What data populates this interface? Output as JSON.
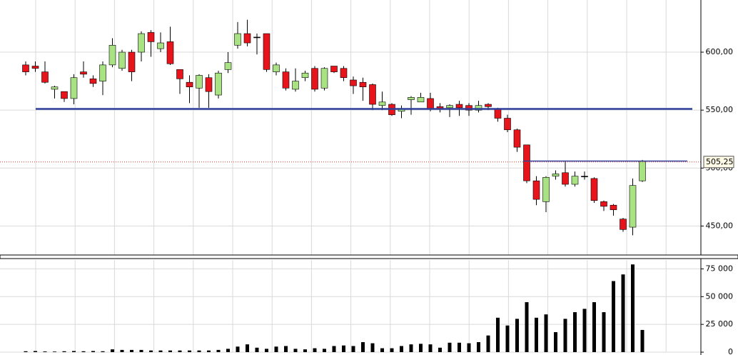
{
  "chart_data": [
    {
      "type": "candlestick",
      "open": [
        589,
        588,
        583,
        568,
        566,
        560,
        583,
        577,
        575,
        589,
        586,
        600,
        600,
        617,
        603,
        609,
        585,
        574,
        569,
        578,
        563,
        585,
        606,
        616,
        613,
        616,
        583,
        583,
        568,
        578,
        586,
        569,
        588,
        586,
        576,
        574,
        572,
        554,
        555,
        549,
        559,
        557,
        560,
        553,
        552,
        555,
        554,
        550,
        555,
        551,
        543,
        533,
        520,
        489,
        471,
        493,
        496,
        486,
        493,
        491,
        471,
        468,
        456,
        449,
        489
      ],
      "high": [
        592,
        592,
        592,
        571,
        566,
        581,
        592,
        580,
        592,
        612,
        602,
        602,
        618,
        619,
        617,
        622,
        585,
        580,
        581,
        581,
        584,
        600,
        626,
        628,
        616,
        616,
        591,
        586,
        586,
        584,
        588,
        587,
        588,
        588,
        579,
        578,
        573,
        566,
        556,
        554,
        562,
        565,
        565,
        556,
        555,
        558,
        556,
        558,
        556,
        552,
        546,
        534,
        520,
        493,
        493,
        498,
        506,
        497,
        497,
        492,
        472,
        469,
        457,
        491,
        507
      ],
      "low": [
        580,
        583,
        573,
        560,
        557,
        555,
        578,
        570,
        563,
        587,
        584,
        575,
        592,
        596,
        600,
        589,
        564,
        556,
        552,
        552,
        560,
        582,
        603,
        605,
        598,
        583,
        580,
        567,
        566,
        575,
        566,
        567,
        582,
        575,
        564,
        558,
        550,
        550,
        545,
        543,
        546,
        557,
        549,
        548,
        544,
        545,
        545,
        548,
        550,
        540,
        531,
        514,
        487,
        468,
        462,
        490,
        484,
        484,
        490,
        470,
        463,
        459,
        445,
        442,
        488
      ],
      "close": [
        583,
        586,
        574,
        570,
        560,
        578,
        581,
        573,
        589,
        606,
        600,
        583,
        616,
        609,
        608,
        590,
        577,
        570,
        580,
        566,
        582,
        591,
        616,
        608,
        613,
        585,
        589,
        569,
        575,
        582,
        568,
        586,
        583,
        578,
        571,
        570,
        555,
        557,
        546,
        551,
        561,
        561,
        551,
        551,
        554,
        552,
        550,
        554,
        553,
        543,
        533,
        518,
        489,
        473,
        492,
        495,
        486,
        493,
        493,
        472,
        467,
        464,
        447,
        485,
        506
      ],
      "up_color": "#a8e283",
      "down_color": "#e8141c",
      "doji_color": "#000000",
      "levels": [
        551,
        506
      ],
      "level_color": "#2e3f9a",
      "last_price": {
        "value": 505.25,
        "label": "505,25"
      },
      "ylim": [
        425,
        645
      ],
      "yticks": [
        {
          "value": 450,
          "label": "450,00"
        },
        {
          "value": 500,
          "label": "500,00"
        },
        {
          "value": 550,
          "label": "550,00"
        },
        {
          "value": 600,
          "label": "600,00"
        }
      ],
      "grid": true
    },
    {
      "type": "bar",
      "values": [
        800,
        1000,
        600,
        500,
        800,
        1000,
        800,
        1000,
        800,
        2500,
        2000,
        2000,
        2000,
        1500,
        1500,
        1500,
        1500,
        1500,
        1500,
        1500,
        2000,
        3000,
        5000,
        7000,
        4000,
        3000,
        5000,
        5500,
        3000,
        2500,
        3500,
        3000,
        5500,
        6000,
        5500,
        9000,
        8000,
        3500,
        3500,
        5500,
        7000,
        7500,
        7000,
        4000,
        8500,
        8500,
        8000,
        9000,
        15000,
        31000,
        24000,
        30000,
        45000,
        31000,
        34000,
        18000,
        30000,
        36000,
        39000,
        45000,
        36000,
        64000,
        70000,
        79000,
        20000
      ],
      "color": "#000000",
      "ylim": [
        0,
        83000
      ],
      "yticks": [
        {
          "value": 0,
          "label": "0"
        },
        {
          "value": 25000,
          "label": "25 000"
        },
        {
          "value": 50000,
          "label": "50 000"
        },
        {
          "value": 75000,
          "label": "75 000"
        }
      ],
      "grid": true
    }
  ]
}
